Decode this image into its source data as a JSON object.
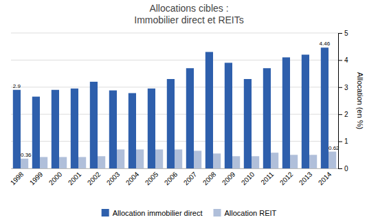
{
  "chart_data": {
    "type": "bar",
    "title": "Allocations cibles :\nImmobilier direct et REITs",
    "categories": [
      "1998",
      "1999",
      "2000",
      "2001",
      "2002",
      "2003",
      "2004",
      "2005",
      "2006",
      "2007",
      "2008",
      "2009",
      "2010",
      "2011",
      "2012",
      "2013",
      "2014"
    ],
    "series": [
      {
        "name": "Allocation immobilier direct",
        "color": "#2E5FAC",
        "values": [
          2.9,
          2.65,
          2.9,
          2.95,
          3.2,
          2.88,
          2.78,
          2.95,
          3.3,
          3.7,
          4.3,
          3.9,
          3.3,
          3.7,
          4.1,
          4.2,
          4.46
        ],
        "value_labels": [
          "2.9",
          null,
          null,
          null,
          null,
          null,
          null,
          null,
          null,
          null,
          null,
          null,
          null,
          null,
          null,
          null,
          "4.46"
        ]
      },
      {
        "name": "Allocation REIT",
        "color": "#B0BFDA",
        "values": [
          0.36,
          0.42,
          0.42,
          0.42,
          0.45,
          0.7,
          0.7,
          0.7,
          0.7,
          0.65,
          0.55,
          0.45,
          0.45,
          0.58,
          0.5,
          0.5,
          0.62
        ],
        "value_labels": [
          "0.36",
          null,
          null,
          null,
          null,
          null,
          null,
          null,
          null,
          null,
          null,
          null,
          null,
          null,
          null,
          null,
          "0.62"
        ]
      }
    ],
    "y_label": "Allocation (en %)",
    "ylim": [
      0,
      5
    ],
    "yticks": [
      0,
      1,
      2,
      3,
      4,
      5
    ],
    "grid": true,
    "legend": "bottom"
  }
}
